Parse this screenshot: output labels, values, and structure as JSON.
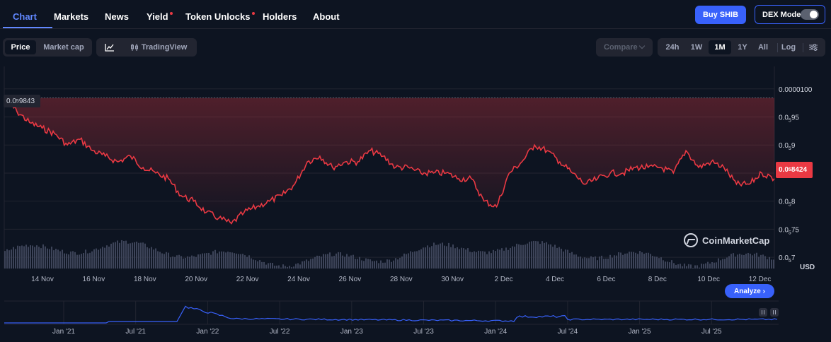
{
  "nav": {
    "tabs": [
      {
        "label": "Chart",
        "active": true,
        "dot": false
      },
      {
        "label": "Markets",
        "active": false,
        "dot": false
      },
      {
        "label": "News",
        "active": false,
        "dot": false
      },
      {
        "label": "Yield",
        "active": false,
        "dot": true
      },
      {
        "label": "Token Unlocks",
        "active": false,
        "dot": true
      },
      {
        "label": "Holders",
        "active": false,
        "dot": false
      },
      {
        "label": "About",
        "active": false,
        "dot": false
      }
    ],
    "buy_label": "Buy SHIB",
    "dex_label": "DEX Mode",
    "dex_on": false
  },
  "toolbar": {
    "price_label": "Price",
    "marketcap_label": "Market cap",
    "line_icon": "line-chart-icon",
    "tradingview_label": "TradingView",
    "compare_label": "Compare",
    "ranges": [
      "24h",
      "1W",
      "1M",
      "1Y",
      "All"
    ],
    "active_range": "1M",
    "log_label": "Log",
    "settings_icon": "sliders-icon"
  },
  "chart": {
    "start_price_label": {
      "prefix": "0.0",
      "sub": "5",
      "digits": "9843"
    },
    "current_price_label": {
      "prefix": "0.0",
      "sub": "5",
      "digits": "8424"
    },
    "currency_label": "USD",
    "watermark": "CoinMarketCap",
    "analyze_label": "Analyze",
    "colors": {
      "line": "#ea3943",
      "grid": "#222531",
      "volume": "#3d4459",
      "nav_line": "#3861fb"
    }
  },
  "chart_data": {
    "type": "line",
    "y_ticks": [
      {
        "value": 1e-05,
        "label_prefix": "0.0000100",
        "sub": ""
      },
      {
        "value": 9.5e-06,
        "label_prefix": "0.0",
        "sub": "5",
        "label_digits": "95"
      },
      {
        "value": 9e-06,
        "label_prefix": "0.0",
        "sub": "5",
        "label_digits": "9"
      },
      {
        "value": 8.5e-06,
        "label_prefix": "",
        "sub": "",
        "label_digits": ""
      },
      {
        "value": 8e-06,
        "label_prefix": "0.0",
        "sub": "5",
        "label_digits": "8"
      },
      {
        "value": 7.5e-06,
        "label_prefix": "0.0",
        "sub": "5",
        "label_digits": "75"
      },
      {
        "value": 7e-06,
        "label_prefix": "0.0",
        "sub": "5",
        "label_digits": "7"
      }
    ],
    "ylim": [
      6.8e-06,
      1.04e-05
    ],
    "x_labels": [
      "14 Nov",
      "16 Nov",
      "18 Nov",
      "20 Nov",
      "22 Nov",
      "24 Nov",
      "26 Nov",
      "28 Nov",
      "30 Nov",
      "2 Dec",
      "4 Dec",
      "6 Dec",
      "8 Dec",
      "10 Dec",
      "12 Dec"
    ],
    "x_days": [
      13.0,
      13.5,
      14.0,
      14.5,
      15.0,
      15.5,
      16.0,
      16.5,
      17.0,
      17.5,
      18.0,
      18.5,
      19.0,
      19.5,
      20.0,
      20.5,
      21.0,
      21.5,
      22.0,
      22.5,
      23.0,
      23.5,
      24.0,
      24.5,
      25.0,
      25.5,
      26.0,
      26.5,
      27.0,
      27.5,
      28.0,
      28.5,
      29.0,
      29.5,
      30.0,
      30.5,
      31.0,
      31.5,
      32.0,
      32.5,
      33.0,
      33.5,
      34.0,
      34.5,
      35.0,
      35.5,
      36.0,
      36.5,
      37.0,
      37.5,
      38.0,
      38.5,
      39.0,
      39.5,
      40.0,
      40.5,
      41.0,
      41.5,
      42.0,
      42.5,
      43.0,
      43.5
    ],
    "price": [
      9.84e-06,
      9.6e-06,
      9.4e-06,
      9.3e-06,
      9.2e-06,
      9e-06,
      9.1e-06,
      8.9e-06,
      8.8e-06,
      8.7e-06,
      8.8e-06,
      8.6e-06,
      8.5e-06,
      8.4e-06,
      8.1e-06,
      8e-06,
      7.8e-06,
      7.7e-06,
      7.6e-06,
      7.8e-06,
      7.9e-06,
      8e-06,
      8.1e-06,
      8.3e-06,
      8.7e-06,
      8.8e-06,
      8.6e-06,
      8.7e-06,
      8.7e-06,
      8.9e-06,
      8.8e-06,
      8.6e-06,
      8.6e-06,
      8.5e-06,
      8.5e-06,
      8.5e-06,
      8.4e-06,
      8.4e-06,
      8e-06,
      7.9e-06,
      8.5e-06,
      8.7e-06,
      9e-06,
      8.9e-06,
      8.7e-06,
      8.5e-06,
      8.3e-06,
      8.4e-06,
      8.5e-06,
      8.5e-06,
      8.6e-06,
      8.6e-06,
      8.6e-06,
      8.5e-06,
      8.9e-06,
      8.6e-06,
      8.7e-06,
      8.6e-06,
      8.3e-06,
      8.3e-06,
      8.5e-06,
      8.4e-06
    ],
    "nav_x_labels": [
      "Jan '21",
      "Jul '21",
      "Jan '22",
      "Jul '22",
      "Jan '23",
      "Jul '23",
      "Jan '24",
      "Jul '24",
      "Jan '25",
      "Jul '25"
    ]
  }
}
